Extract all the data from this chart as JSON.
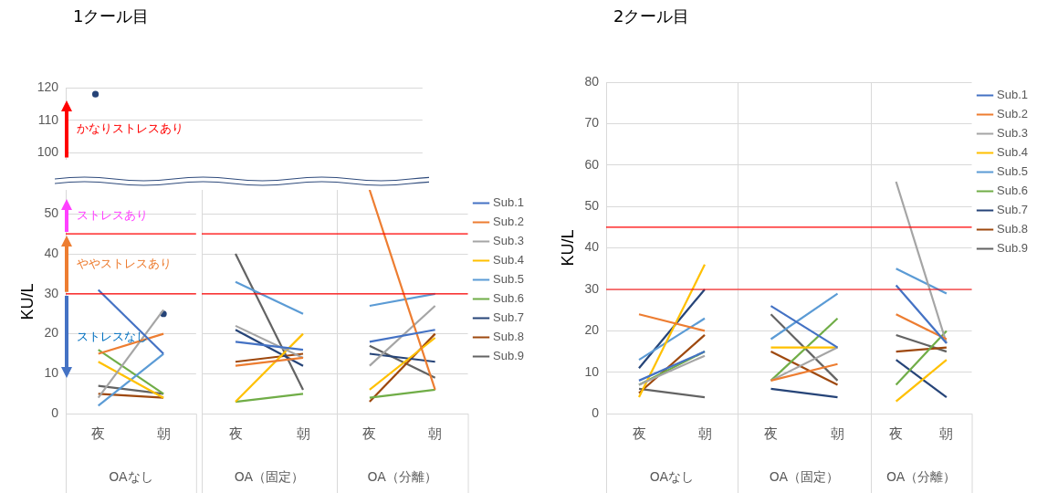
{
  "chart_data": [
    {
      "type": "line",
      "title": "1クール目",
      "categories": [
        null,
        null,
        null,
        null,
        null,
        null
      ],
      "ylim": [
        98,
        120
      ],
      "yticks": [
        100,
        110,
        120
      ],
      "tick_labels": "y",
      "grid": "y",
      "annotations": [
        "かなりストレスあり"
      ],
      "series": [
        {
          "color": "#264478",
          "marker": "circle",
          "values": [
            118,
            null,
            null,
            null,
            null,
            null
          ]
        }
      ]
    },
    {
      "type": "line",
      "ylabel": "KU/L",
      "xlabel": "OAなし",
      "categories": [
        "夜",
        "朝"
      ],
      "ylim": [
        0,
        56
      ],
      "yticks": [
        0,
        10,
        20,
        30,
        40,
        50
      ],
      "grid": "y",
      "annotations": [
        "ストレスあり",
        "ややストレスあり",
        "ストレスなし"
      ],
      "ref_lines": [
        {
          "axis": "y",
          "value": 30,
          "color": "#ff0000"
        },
        {
          "axis": "y",
          "value": 45,
          "color": "#ff0000"
        }
      ],
      "series": [
        {
          "color": "#4472c4",
          "values": [
            31,
            15
          ]
        },
        {
          "color": "#ed7d31",
          "values": [
            15,
            20
          ]
        },
        {
          "color": "#a5a5a5",
          "values": [
            4,
            26
          ]
        },
        {
          "color": "#ffc000",
          "values": [
            13,
            4
          ]
        },
        {
          "color": "#5b9bd5",
          "values": [
            2,
            15
          ]
        },
        {
          "color": "#70ad47",
          "values": [
            16,
            5
          ]
        },
        {
          "color": "#264478",
          "marker": "circle",
          "values": [
            null,
            25
          ]
        },
        {
          "color": "#9e480e",
          "values": [
            5,
            4
          ]
        },
        {
          "color": "#636363",
          "values": [
            7,
            5
          ]
        }
      ]
    },
    {
      "type": "line",
      "xlabel": "OA（固定）",
      "categories": [
        "夜",
        "朝"
      ],
      "ylim": [
        0,
        56
      ],
      "yticks": [
        0,
        10,
        20,
        30,
        40,
        50
      ],
      "tick_labels": "x",
      "grid": "y",
      "marker": "none",
      "ref_lines": [
        {
          "axis": "y",
          "value": 30,
          "color": "#ff0000"
        },
        {
          "axis": "y",
          "value": 45,
          "color": "#ff0000"
        }
      ],
      "series": [
        {
          "color": "#4472c4",
          "values": [
            18,
            16
          ]
        },
        {
          "color": "#ed7d31",
          "values": [
            12,
            14
          ]
        },
        {
          "color": "#a5a5a5",
          "values": [
            22,
            14
          ]
        },
        {
          "color": "#ffc000",
          "values": [
            3,
            20
          ]
        },
        {
          "color": "#5b9bd5",
          "values": [
            33,
            25
          ]
        },
        {
          "color": "#70ad47",
          "values": [
            3,
            5
          ]
        },
        {
          "color": "#264478",
          "values": [
            21,
            12
          ]
        },
        {
          "color": "#9e480e",
          "values": [
            13,
            15
          ]
        },
        {
          "color": "#636363",
          "values": [
            40,
            6
          ]
        }
      ]
    },
    {
      "type": "line",
      "xlabel": "OA（分離）",
      "categories": [
        "夜",
        "朝"
      ],
      "ylim": [
        0,
        56
      ],
      "yticks": [
        0,
        10,
        20,
        30,
        40,
        50
      ],
      "tick_labels": "x",
      "grid": "y",
      "marker": "none",
      "legend": "right",
      "ref_lines": [
        {
          "axis": "y",
          "value": 30,
          "color": "#ff0000"
        },
        {
          "axis": "y",
          "value": 45,
          "color": "#ff0000"
        }
      ],
      "series": [
        {
          "name": "Sub.1",
          "color": "#4472c4",
          "values": [
            18,
            21
          ]
        },
        {
          "name": "Sub.2",
          "color": "#ed7d31",
          "values": [
            56,
            6
          ]
        },
        {
          "name": "Sub.3",
          "color": "#a5a5a5",
          "values": [
            12,
            27
          ]
        },
        {
          "name": "Sub.4",
          "color": "#ffc000",
          "values": [
            6,
            19
          ]
        },
        {
          "name": "Sub.5",
          "color": "#5b9bd5",
          "values": [
            27,
            30
          ]
        },
        {
          "name": "Sub.6",
          "color": "#70ad47",
          "values": [
            4,
            6
          ]
        },
        {
          "name": "Sub.7",
          "color": "#264478",
          "values": [
            15,
            13
          ]
        },
        {
          "name": "Sub.8",
          "color": "#9e480e",
          "values": [
            3,
            20
          ]
        },
        {
          "name": "Sub.9",
          "color": "#636363",
          "values": [
            17,
            9
          ]
        }
      ]
    },
    {
      "type": "line",
      "title": "2クール目",
      "ylabel": "KU/L",
      "xlabel": "OAなし",
      "categories": [
        "夜",
        "朝"
      ],
      "ylim": [
        0,
        80
      ],
      "yticks": [
        0,
        10,
        20,
        30,
        40,
        50,
        60,
        70,
        80
      ],
      "grid": "y",
      "marker": "none",
      "ref_lines": [
        {
          "axis": "y",
          "value": 30,
          "color": "#ff0000"
        },
        {
          "axis": "y",
          "value": 45,
          "color": "#ff0000"
        }
      ],
      "series": [
        {
          "color": "#4472c4",
          "values": [
            8,
            15
          ]
        },
        {
          "color": "#ed7d31",
          "values": [
            24,
            20
          ]
        },
        {
          "color": "#a5a5a5",
          "values": [
            7,
            14
          ]
        },
        {
          "color": "#ffc000",
          "values": [
            4,
            36
          ]
        },
        {
          "color": "#5b9bd5",
          "values": [
            13,
            23
          ]
        },
        {
          "color": "#70ad47",
          "values": [
            7,
            15
          ]
        },
        {
          "color": "#264478",
          "values": [
            11,
            30
          ]
        },
        {
          "color": "#9e480e",
          "values": [
            5,
            19
          ]
        },
        {
          "color": "#636363",
          "values": [
            6,
            4
          ]
        }
      ]
    },
    {
      "type": "line",
      "xlabel": "OA（固定）",
      "categories": [
        "夜",
        "朝"
      ],
      "ylim": [
        0,
        80
      ],
      "yticks": [
        0,
        10,
        20,
        30,
        40,
        50,
        60,
        70,
        80
      ],
      "tick_labels": "x",
      "grid": "y",
      "marker": "none",
      "ref_lines": [
        {
          "axis": "y",
          "value": 30,
          "color": "#ff0000"
        },
        {
          "axis": "y",
          "value": 45,
          "color": "#ff0000"
        }
      ],
      "series": [
        {
          "color": "#4472c4",
          "values": [
            26,
            16
          ]
        },
        {
          "color": "#ed7d31",
          "values": [
            8,
            12
          ]
        },
        {
          "color": "#a5a5a5",
          "values": [
            8,
            16
          ]
        },
        {
          "color": "#ffc000",
          "values": [
            16,
            16
          ]
        },
        {
          "color": "#5b9bd5",
          "values": [
            18,
            29
          ]
        },
        {
          "color": "#70ad47",
          "values": [
            8,
            23
          ]
        },
        {
          "color": "#264478",
          "values": [
            6,
            4
          ]
        },
        {
          "color": "#9e480e",
          "values": [
            15,
            7
          ]
        },
        {
          "color": "#636363",
          "values": [
            24,
            8
          ]
        }
      ]
    },
    {
      "type": "line",
      "xlabel": "OA（分離）",
      "categories": [
        "夜",
        "朝"
      ],
      "ylim": [
        0,
        80
      ],
      "yticks": [
        0,
        10,
        20,
        30,
        40,
        50,
        60,
        70,
        80
      ],
      "tick_labels": "x",
      "grid": "y",
      "marker": "none",
      "legend": "right",
      "ref_lines": [
        {
          "axis": "y",
          "value": 30,
          "color": "#ff0000"
        },
        {
          "axis": "y",
          "value": 45,
          "color": "#ff0000"
        }
      ],
      "series": [
        {
          "name": "Sub.1",
          "color": "#4472c4",
          "values": [
            31,
            17
          ]
        },
        {
          "name": "Sub.2",
          "color": "#ed7d31",
          "values": [
            24,
            18
          ]
        },
        {
          "name": "Sub.3",
          "color": "#a5a5a5",
          "values": [
            56,
            17
          ]
        },
        {
          "name": "Sub.4",
          "color": "#ffc000",
          "values": [
            3,
            13
          ]
        },
        {
          "name": "Sub.5",
          "color": "#5b9bd5",
          "values": [
            35,
            29
          ]
        },
        {
          "name": "Sub.6",
          "color": "#70ad47",
          "values": [
            7,
            20
          ]
        },
        {
          "name": "Sub.7",
          "color": "#264478",
          "values": [
            13,
            4
          ]
        },
        {
          "name": "Sub.8",
          "color": "#9e480e",
          "values": [
            15,
            16
          ]
        },
        {
          "name": "Sub.9",
          "color": "#636363",
          "values": [
            19,
            15
          ]
        }
      ]
    }
  ]
}
